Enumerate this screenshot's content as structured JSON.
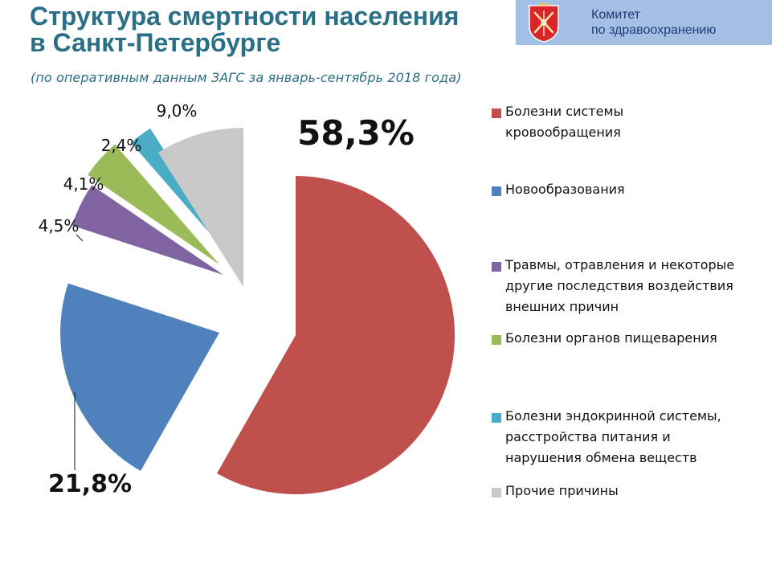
{
  "header": {
    "title": "Структура смертности населения\nв Санкт-Петербурге",
    "subtitle": "(по оперативным данным ЗАГС за январь-сентябрь 2018 года)"
  },
  "badge": {
    "line1": "Комитет",
    "line2": "по здравоохранению",
    "emblem_icon": "spb-coat-of-arms-icon",
    "background": "#a3bfe3",
    "text_color": "#1f3a78"
  },
  "chart_data": {
    "type": "pie",
    "exploded": true,
    "start": "12 o'clock",
    "direction": "clockwise",
    "series": [
      {
        "name": "Болезни системы\nкровообращения",
        "value": 58.3,
        "label": "58,3%",
        "color": "#c0504d"
      },
      {
        "name": "Новообразования",
        "value": 21.8,
        "label": "21,8%",
        "color": "#4f81bd"
      },
      {
        "name": "Травмы, отравления и некоторые\nдругие последствия воздействия\nвнешних причин",
        "value": 4.5,
        "label": "4,5%",
        "color": "#8064a2"
      },
      {
        "name": "Болезни органов пищеварения",
        "value": 4.1,
        "label": "4,1%",
        "color": "#9bbb59"
      },
      {
        "name": "Болезни эндокринной системы,\nрасстройства питания и\nнарушения обмена веществ",
        "value": 2.4,
        "label": "2,4%",
        "color": "#4bacc6"
      },
      {
        "name": "Прочие причины",
        "value": 9.0,
        "label": "9,0%",
        "color": "#c8c8c8"
      }
    ],
    "legend_position": "right"
  }
}
